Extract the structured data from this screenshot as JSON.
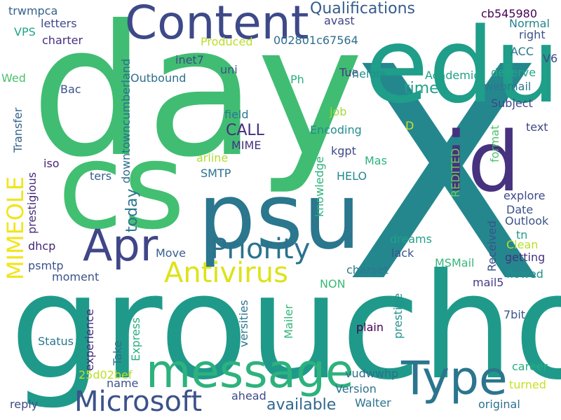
{
  "words": [
    {
      "text": "day",
      "color": "#40bd72"
    },
    {
      "text": "X",
      "color": "#24878e"
    },
    {
      "text": "groucho",
      "color": "#1f9a8a"
    },
    {
      "text": "cs",
      "color": "#43bf71"
    },
    {
      "text": "edu",
      "color": "#1f9e89"
    },
    {
      "text": "psu",
      "color": "#2a778e"
    },
    {
      "text": "id",
      "color": "#46327e"
    },
    {
      "text": "Content",
      "color": "#3e4989"
    },
    {
      "text": "message",
      "color": "#2db27d"
    },
    {
      "text": "Type",
      "color": "#2b758e"
    },
    {
      "text": "Apr",
      "color": "#404688"
    },
    {
      "text": "Microsoft",
      "color": "#3b528b"
    },
    {
      "text": "Antivirus",
      "color": "#dde318"
    },
    {
      "text": "Priority",
      "color": "#2c728e"
    },
    {
      "text": "MIMEOLE",
      "color": "#f1e51d"
    },
    {
      "text": "available",
      "color": "#31688e"
    },
    {
      "text": "Qualifications",
      "color": "#365c8d"
    },
    {
      "text": "CALL",
      "color": "#472d7b"
    },
    {
      "text": "time",
      "color": "#1fa088"
    },
    {
      "text": "Outbound",
      "color": "#2e6e8e"
    },
    {
      "text": "Produced",
      "color": "#bade28"
    },
    {
      "text": "002801c67564",
      "color": "#2e6d8e"
    },
    {
      "text": "inet7",
      "color": "#3e4a89"
    },
    {
      "text": "cb545980",
      "color": "#440154"
    },
    {
      "text": "right",
      "color": "#3b518b"
    },
    {
      "text": "Normal",
      "color": "#25848e"
    },
    {
      "text": "ACC",
      "color": "#2a788e"
    },
    {
      "text": "V6",
      "color": "#3f4788"
    },
    {
      "text": "avast",
      "color": "#414487"
    },
    {
      "text": "letters",
      "color": "#3e4989"
    },
    {
      "text": "trwmpca",
      "color": "#33628d"
    },
    {
      "text": "VPS",
      "color": "#20a486"
    },
    {
      "text": "charter",
      "color": "#472f7d"
    },
    {
      "text": "Wed",
      "color": "#4ac16d"
    },
    {
      "text": "uni",
      "color": "#3b528b"
    },
    {
      "text": "Tue",
      "color": "#453882"
    },
    {
      "text": "helors",
      "color": "#218f8d"
    },
    {
      "text": "Academic",
      "color": "#1fa287"
    },
    {
      "text": "deserve",
      "color": "#22a884"
    },
    {
      "text": "webmail",
      "color": "#2a788e"
    },
    {
      "text": "Ph",
      "color": "#2ab07f"
    },
    {
      "text": "Bac",
      "color": "#3b528b"
    },
    {
      "text": "Subject",
      "color": "#3f4889"
    },
    {
      "text": "field",
      "color": "#2a788e"
    },
    {
      "text": "job",
      "color": "#a2da37"
    },
    {
      "text": "text",
      "color": "#404588"
    },
    {
      "text": "D",
      "color": "#cde11d"
    },
    {
      "text": "Encoding",
      "color": "#228d8d"
    },
    {
      "text": "MIME",
      "color": "#46327e"
    },
    {
      "text": "arline",
      "color": "#addc30"
    },
    {
      "text": "kgpt",
      "color": "#3e4a89"
    },
    {
      "text": "Mas",
      "color": "#2db27d"
    },
    {
      "text": "iso",
      "color": "#482576"
    },
    {
      "text": "SMTP",
      "color": "#2c728e"
    },
    {
      "text": "HELO",
      "color": "#23888e"
    },
    {
      "text": "explore",
      "color": "#3e4989"
    },
    {
      "text": "ters",
      "color": "#355f8d"
    },
    {
      "text": "Date",
      "color": "#3b528b"
    },
    {
      "text": "Outlook",
      "color": "#3b528b"
    },
    {
      "text": "tn",
      "color": "#1f9e89"
    },
    {
      "text": "Clean",
      "color": "#b8de29"
    },
    {
      "text": "dhcp",
      "color": "#482475"
    },
    {
      "text": "Move",
      "color": "#355f8d"
    },
    {
      "text": "dreams",
      "color": "#1fa187"
    },
    {
      "text": "lack",
      "color": "#39568c"
    },
    {
      "text": "getting",
      "color": "#46327e"
    },
    {
      "text": "psmtp",
      "color": "#3b528b"
    },
    {
      "text": "moment",
      "color": "#3b528b"
    },
    {
      "text": "charset",
      "color": "#29798e"
    },
    {
      "text": "MSMail",
      "color": "#35b779"
    },
    {
      "text": "flowed",
      "color": "#21918c"
    },
    {
      "text": "NON",
      "color": "#3bbb75"
    },
    {
      "text": "mail5",
      "color": "#443a83"
    },
    {
      "text": "7bit",
      "color": "#3a538b"
    },
    {
      "text": "Status",
      "color": "#2a788e"
    },
    {
      "text": "plain",
      "color": "#440154"
    },
    {
      "text": "Take",
      "color": "#2d708e"
    },
    {
      "text": "25d02bef",
      "color": "#bddf26"
    },
    {
      "text": "career",
      "color": "#26ad81"
    },
    {
      "text": "name",
      "color": "#3b528b"
    },
    {
      "text": "vudwwhp",
      "color": "#2e6e8e"
    },
    {
      "text": "turned",
      "color": "#c8e020"
    },
    {
      "text": "Version",
      "color": "#2c728e"
    },
    {
      "text": "reply",
      "color": "#3e4989"
    },
    {
      "text": "ahead",
      "color": "#3e4989"
    },
    {
      "text": "Walter",
      "color": "#2c728e"
    },
    {
      "text": "original",
      "color": "#2c728e"
    },
    {
      "text": "downtowncumberland",
      "color": "#2e6e8e"
    },
    {
      "text": "today",
      "color": "#2b758e"
    },
    {
      "text": "prestigious",
      "color": "#472c7a"
    },
    {
      "text": "Transfer",
      "color": "#33638d"
    },
    {
      "text": "knowledge",
      "color": "#2db27d"
    },
    {
      "text": "REDITED",
      "color": "#6ccd5a"
    },
    {
      "text": "format",
      "color": "#4ec36b"
    },
    {
      "text": "Received",
      "color": "#3b528b"
    },
    {
      "text": "experience",
      "color": "#482878"
    },
    {
      "text": "Express",
      "color": "#27ad81"
    },
    {
      "text": "versities",
      "color": "#2a788e"
    },
    {
      "text": "Mailer",
      "color": "#35b779"
    },
    {
      "text": "prestige",
      "color": "#21918c"
    }
  ]
}
